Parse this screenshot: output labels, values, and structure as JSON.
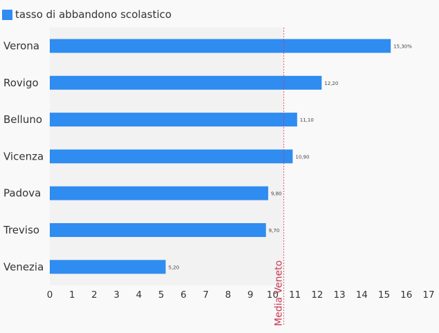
{
  "chart_data": {
    "type": "bar",
    "orientation": "horizontal",
    "categories": [
      "Verona",
      "Rovigo",
      "Belluno",
      "Vicenza",
      "Padova",
      "Treviso",
      "Venezia"
    ],
    "series": [
      {
        "name": "tasso di abbandono scolastico",
        "values": [
          15.3,
          12.2,
          11.1,
          10.9,
          9.8,
          9.7,
          5.2
        ]
      }
    ],
    "data_labels": [
      "15,30%",
      "12,20",
      "11,10",
      "10,90",
      "9,80",
      "9,70",
      "5,20"
    ],
    "xlim": [
      0,
      17
    ],
    "xticks": [
      0,
      1,
      2,
      3,
      4,
      5,
      6,
      7,
      8,
      9,
      10,
      11,
      12,
      13,
      14,
      15,
      16,
      17
    ],
    "reference_line": {
      "value": 10.5,
      "label": "Media Veneto",
      "color": "#e0304e"
    },
    "legend_position": "top-left",
    "bar_color": "#2f8cf0",
    "plot_background": "#f2f2f2"
  }
}
